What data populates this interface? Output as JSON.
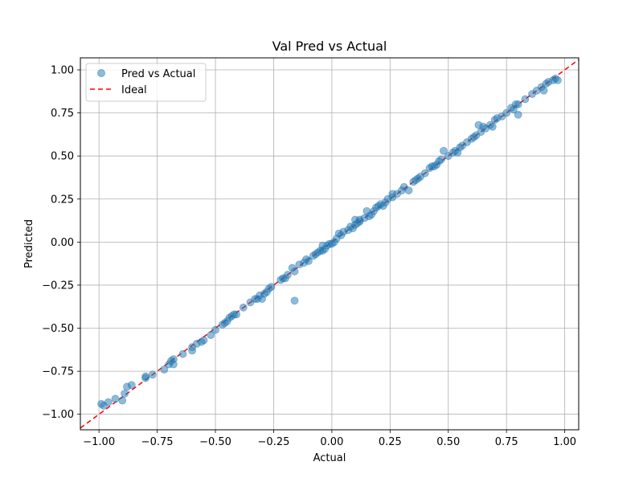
{
  "chart_data": {
    "type": "scatter",
    "title": "Val Pred vs Actual",
    "xlabel": "Actual",
    "ylabel": "Predicted",
    "xlim": [
      -1.08,
      1.06
    ],
    "ylim": [
      -1.09,
      1.07
    ],
    "xticks": [
      -1.0,
      -0.75,
      -0.5,
      -0.25,
      0.0,
      0.25,
      0.5,
      0.75,
      1.0
    ],
    "xtick_labels": [
      "−1.00",
      "−0.75",
      "−0.50",
      "−0.25",
      "0.00",
      "0.25",
      "0.50",
      "0.75",
      "1.00"
    ],
    "yticks": [
      -1.0,
      -0.75,
      -0.5,
      -0.25,
      0.0,
      0.25,
      0.5,
      0.75,
      1.0
    ],
    "ytick_labels": [
      "−1.00",
      "−0.75",
      "−0.50",
      "−0.25",
      "0.00",
      "0.25",
      "0.50",
      "0.75",
      "1.00"
    ],
    "grid": true,
    "legend_position": "top-left",
    "series": [
      {
        "name": "Pred vs Actual",
        "kind": "scatter",
        "color": "#1f77b4",
        "alpha": 0.5,
        "points": [
          [
            -0.99,
            -0.94
          ],
          [
            -0.98,
            -0.95
          ],
          [
            -0.96,
            -0.93
          ],
          [
            -0.93,
            -0.91
          ],
          [
            -0.9,
            -0.92
          ],
          [
            -0.89,
            -0.88
          ],
          [
            -0.88,
            -0.84
          ],
          [
            -0.86,
            -0.83
          ],
          [
            -0.8,
            -0.79
          ],
          [
            -0.8,
            -0.78
          ],
          [
            -0.77,
            -0.77
          ],
          [
            -0.72,
            -0.74
          ],
          [
            -0.7,
            -0.71
          ],
          [
            -0.69,
            -0.69
          ],
          [
            -0.68,
            -0.71
          ],
          [
            -0.68,
            -0.68
          ],
          [
            -0.64,
            -0.65
          ],
          [
            -0.6,
            -0.63
          ],
          [
            -0.6,
            -0.61
          ],
          [
            -0.58,
            -0.59
          ],
          [
            -0.56,
            -0.58
          ],
          [
            -0.55,
            -0.57
          ],
          [
            -0.52,
            -0.54
          ],
          [
            -0.5,
            -0.51
          ],
          [
            -0.47,
            -0.48
          ],
          [
            -0.46,
            -0.47
          ],
          [
            -0.45,
            -0.46
          ],
          [
            -0.44,
            -0.44
          ],
          [
            -0.43,
            -0.43
          ],
          [
            -0.42,
            -0.42
          ],
          [
            -0.41,
            -0.42
          ],
          [
            -0.38,
            -0.38
          ],
          [
            -0.35,
            -0.35
          ],
          [
            -0.33,
            -0.33
          ],
          [
            -0.32,
            -0.33
          ],
          [
            -0.31,
            -0.31
          ],
          [
            -0.3,
            -0.33
          ],
          [
            -0.29,
            -0.3
          ],
          [
            -0.28,
            -0.29
          ],
          [
            -0.27,
            -0.27
          ],
          [
            -0.26,
            -0.26
          ],
          [
            -0.22,
            -0.22
          ],
          [
            -0.21,
            -0.21
          ],
          [
            -0.2,
            -0.21
          ],
          [
            -0.19,
            -0.19
          ],
          [
            -0.17,
            -0.15
          ],
          [
            -0.16,
            -0.17
          ],
          [
            -0.16,
            -0.34
          ],
          [
            -0.14,
            -0.13
          ],
          [
            -0.12,
            -0.12
          ],
          [
            -0.11,
            -0.1
          ],
          [
            -0.1,
            -0.11
          ],
          [
            -0.08,
            -0.08
          ],
          [
            -0.07,
            -0.07
          ],
          [
            -0.06,
            -0.06
          ],
          [
            -0.05,
            -0.05
          ],
          [
            -0.04,
            -0.05
          ],
          [
            -0.04,
            -0.02
          ],
          [
            -0.03,
            -0.04
          ],
          [
            -0.02,
            -0.02
          ],
          [
            -0.01,
            -0.01
          ],
          [
            0.0,
            -0.01
          ],
          [
            0.01,
            0.0
          ],
          [
            0.02,
            0.02
          ],
          [
            0.03,
            0.05
          ],
          [
            0.04,
            0.04
          ],
          [
            0.05,
            0.06
          ],
          [
            0.07,
            0.07
          ],
          [
            0.08,
            0.09
          ],
          [
            0.09,
            0.08
          ],
          [
            0.1,
            0.1
          ],
          [
            0.1,
            0.13
          ],
          [
            0.11,
            0.11
          ],
          [
            0.12,
            0.12
          ],
          [
            0.12,
            0.13
          ],
          [
            0.14,
            0.14
          ],
          [
            0.15,
            0.18
          ],
          [
            0.16,
            0.15
          ],
          [
            0.17,
            0.16
          ],
          [
            0.18,
            0.18
          ],
          [
            0.19,
            0.2
          ],
          [
            0.2,
            0.21
          ],
          [
            0.21,
            0.22
          ],
          [
            0.22,
            0.21
          ],
          [
            0.23,
            0.23
          ],
          [
            0.24,
            0.25
          ],
          [
            0.26,
            0.26
          ],
          [
            0.26,
            0.28
          ],
          [
            0.28,
            0.28
          ],
          [
            0.3,
            0.3
          ],
          [
            0.31,
            0.32
          ],
          [
            0.33,
            0.3
          ],
          [
            0.35,
            0.35
          ],
          [
            0.36,
            0.36
          ],
          [
            0.37,
            0.37
          ],
          [
            0.38,
            0.38
          ],
          [
            0.4,
            0.4
          ],
          [
            0.42,
            0.43
          ],
          [
            0.43,
            0.44
          ],
          [
            0.44,
            0.44
          ],
          [
            0.45,
            0.45
          ],
          [
            0.46,
            0.47
          ],
          [
            0.47,
            0.48
          ],
          [
            0.48,
            0.53
          ],
          [
            0.5,
            0.5
          ],
          [
            0.52,
            0.52
          ],
          [
            0.53,
            0.53
          ],
          [
            0.54,
            0.52
          ],
          [
            0.55,
            0.55
          ],
          [
            0.56,
            0.56
          ],
          [
            0.58,
            0.58
          ],
          [
            0.6,
            0.6
          ],
          [
            0.61,
            0.61
          ],
          [
            0.62,
            0.62
          ],
          [
            0.63,
            0.68
          ],
          [
            0.64,
            0.64
          ],
          [
            0.65,
            0.67
          ],
          [
            0.66,
            0.66
          ],
          [
            0.68,
            0.68
          ],
          [
            0.69,
            0.67
          ],
          [
            0.7,
            0.71
          ],
          [
            0.71,
            0.72
          ],
          [
            0.73,
            0.73
          ],
          [
            0.75,
            0.75
          ],
          [
            0.77,
            0.78
          ],
          [
            0.78,
            0.77
          ],
          [
            0.79,
            0.8
          ],
          [
            0.8,
            0.8
          ],
          [
            0.8,
            0.74
          ],
          [
            0.83,
            0.83
          ],
          [
            0.86,
            0.86
          ],
          [
            0.88,
            0.88
          ],
          [
            0.9,
            0.9
          ],
          [
            0.91,
            0.88
          ],
          [
            0.92,
            0.92
          ],
          [
            0.93,
            0.93
          ],
          [
            0.95,
            0.94
          ],
          [
            0.96,
            0.95
          ],
          [
            0.97,
            0.94
          ]
        ]
      },
      {
        "name": "Ideal",
        "kind": "line",
        "style": "dashed",
        "color": "#ff0000",
        "points": [
          [
            -1.08,
            -1.08
          ],
          [
            1.06,
            1.06
          ]
        ]
      }
    ]
  }
}
